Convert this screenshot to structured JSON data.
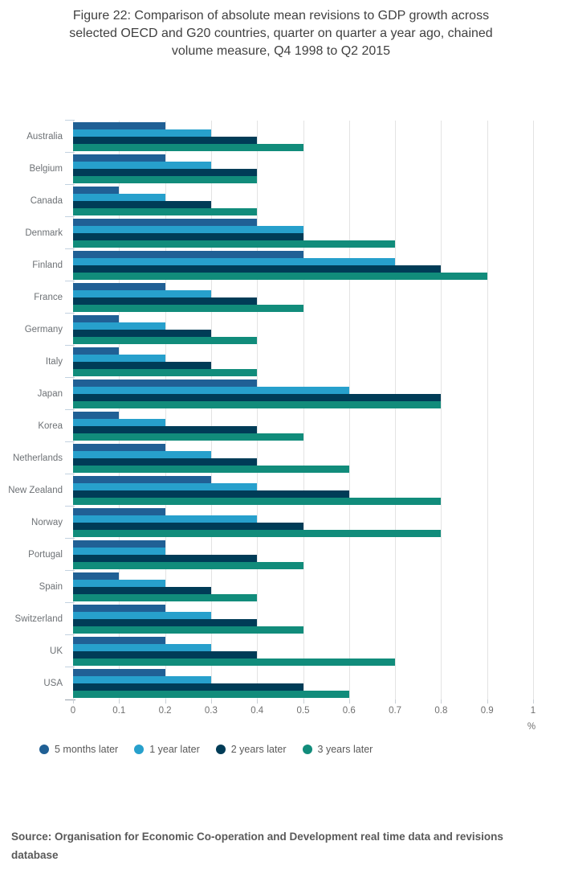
{
  "figure": {
    "title": "Figure 22: Comparison of absolute mean revisions to GDP growth across\nselected OECD and G20 countries, quarter on quarter a year ago, chained\nvolume measure, Q4 1998 to Q2 2015",
    "source": "Source: Organisation for Economic Co-operation and Development real time data and revisions database"
  },
  "chart_data": {
    "type": "bar",
    "orientation": "horizontal",
    "title": "Figure 22: Comparison of absolute mean revisions to GDP growth across selected OECD and G20 countries, quarter on quarter a year ago, chained volume measure, Q4 1998 to Q2 2015",
    "categories": [
      "Australia",
      "Belgium",
      "Canada",
      "Denmark",
      "Finland",
      "France",
      "Germany",
      "Italy",
      "Japan",
      "Korea",
      "Netherlands",
      "New Zealand",
      "Norway",
      "Portugal",
      "Spain",
      "Switzerland",
      "UK",
      "USA"
    ],
    "series": [
      {
        "name": "5 months later",
        "color": "#206095",
        "values": [
          0.2,
          0.2,
          0.1,
          0.4,
          0.5,
          0.2,
          0.1,
          0.1,
          0.4,
          0.1,
          0.2,
          0.3,
          0.2,
          0.2,
          0.1,
          0.2,
          0.2,
          0.2
        ]
      },
      {
        "name": "1 year later",
        "color": "#27A0CC",
        "values": [
          0.3,
          0.3,
          0.2,
          0.5,
          0.7,
          0.3,
          0.2,
          0.2,
          0.6,
          0.2,
          0.3,
          0.4,
          0.4,
          0.2,
          0.2,
          0.3,
          0.3,
          0.3
        ]
      },
      {
        "name": "2 years later",
        "color": "#003C57",
        "values": [
          0.4,
          0.4,
          0.3,
          0.5,
          0.8,
          0.4,
          0.3,
          0.3,
          0.8,
          0.4,
          0.4,
          0.6,
          0.5,
          0.4,
          0.3,
          0.4,
          0.4,
          0.5
        ]
      },
      {
        "name": "3 years later",
        "color": "#118C7B",
        "values": [
          0.5,
          0.4,
          0.4,
          0.7,
          0.9,
          0.5,
          0.4,
          0.4,
          0.8,
          0.5,
          0.6,
          0.8,
          0.8,
          0.5,
          0.4,
          0.5,
          0.7,
          0.6
        ]
      }
    ],
    "xlabel": "%",
    "xticks": [
      "0",
      "0.1",
      "0.2",
      "0.3",
      "0.4",
      "0.5",
      "0.6",
      "0.7",
      "0.8",
      "0.9",
      "1"
    ],
    "xlim": [
      0,
      1
    ],
    "grid": "vertical",
    "legend_position": "bottom"
  }
}
